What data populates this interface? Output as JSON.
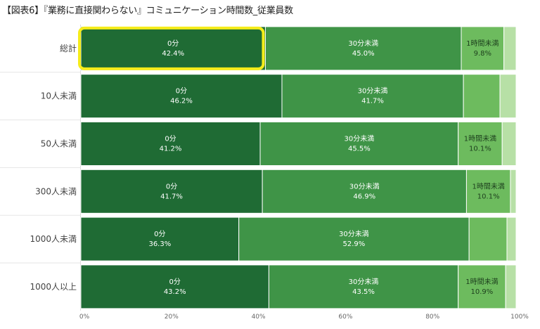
{
  "title": "【図表6】『業務に直接関わらない』コミュニケーション時間数_従業員数",
  "chart_data": {
    "type": "bar",
    "orientation": "horizontal",
    "stacked": "percent",
    "categories": [
      "総計",
      "10人未満",
      "50人未満",
      "300人未満",
      "1000人未満",
      "1000人以上"
    ],
    "series": [
      {
        "name": "0分",
        "values": [
          42.4,
          46.2,
          41.2,
          41.7,
          36.3,
          43.2
        ]
      },
      {
        "name": "30分未満",
        "values": [
          45.0,
          41.7,
          45.5,
          46.9,
          52.9,
          43.5
        ]
      },
      {
        "name": "1時間未満",
        "values": [
          9.8,
          8.4,
          10.1,
          10.1,
          8.7,
          10.9
        ]
      },
      {
        "name": "",
        "values": [
          2.8,
          3.7,
          3.2,
          1.3,
          2.1,
          2.4
        ]
      }
    ],
    "data_labels": [
      [
        {
          "series": "0分",
          "value": "42.4%"
        },
        {
          "series": "30分未満",
          "value": "45.0%"
        },
        {
          "series": "1時間未満",
          "value": "9.8%"
        }
      ],
      [
        {
          "series": "0分",
          "value": "46.2%"
        },
        {
          "series": "30分未満",
          "value": "41.7%"
        }
      ],
      [
        {
          "series": "0分",
          "value": "41.2%"
        },
        {
          "series": "30分未満",
          "value": "45.5%"
        },
        {
          "series": "1時間未満",
          "value": "10.1%"
        }
      ],
      [
        {
          "series": "0分",
          "value": "41.7%"
        },
        {
          "series": "30分未満",
          "value": "46.9%"
        },
        {
          "series": "1時間未満",
          "value": "10.1%"
        }
      ],
      [
        {
          "series": "0分",
          "value": "36.3%"
        },
        {
          "series": "30分未満",
          "value": "52.9%"
        }
      ],
      [
        {
          "series": "0分",
          "value": "43.2%"
        },
        {
          "series": "30分未満",
          "value": "43.5%"
        },
        {
          "series": "1時間未満",
          "value": "10.9%"
        }
      ]
    ],
    "xticks": [
      "0%",
      "20%",
      "40%",
      "60%",
      "80%",
      "100%"
    ],
    "xlim": [
      0,
      100
    ],
    "highlight": {
      "category": "総計",
      "series": "0分",
      "color": "#f5ec1a"
    },
    "colors": [
      "#1f6b34",
      "#3f9447",
      "#6dbb5e",
      "#b7e0a6"
    ],
    "grid": false,
    "legend": "none"
  }
}
